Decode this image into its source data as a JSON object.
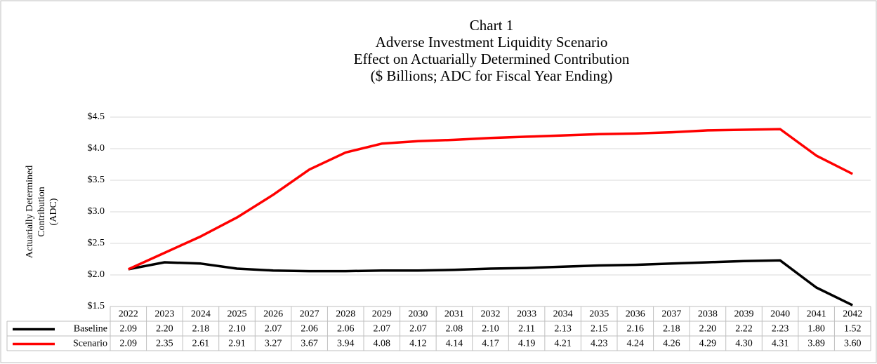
{
  "chart_data": {
    "type": "line",
    "title_lines": [
      "Chart 1",
      "Adverse Investment Liquidity Scenario",
      "Effect on Actuarially Determined Contribution",
      "($ Billions; ADC for Fiscal Year Ending)"
    ],
    "y_label_lines": [
      "Actuarially Determined",
      "Contribution",
      "(ADC)"
    ],
    "categories": [
      "2022",
      "2023",
      "2024",
      "2025",
      "2026",
      "2027",
      "2028",
      "2029",
      "2030",
      "2031",
      "2032",
      "2033",
      "2034",
      "2035",
      "2036",
      "2037",
      "2038",
      "2039",
      "2040",
      "2041",
      "2042"
    ],
    "series": [
      {
        "name": "Baseline",
        "color": "#000000",
        "values": [
          2.09,
          2.2,
          2.18,
          2.1,
          2.07,
          2.06,
          2.06,
          2.07,
          2.07,
          2.08,
          2.1,
          2.11,
          2.13,
          2.15,
          2.16,
          2.18,
          2.2,
          2.22,
          2.23,
          1.8,
          1.52
        ],
        "value_labels": [
          "2.09",
          "2.20",
          "2.18",
          "2.10",
          "2.07",
          "2.06",
          "2.06",
          "2.07",
          "2.07",
          "2.08",
          "2.10",
          "2.11",
          "2.13",
          "2.15",
          "2.16",
          "2.18",
          "2.20",
          "2.22",
          "2.23",
          "1.80",
          "1.52"
        ]
      },
      {
        "name": "Scenario",
        "color": "#ff0000",
        "values": [
          2.09,
          2.35,
          2.61,
          2.91,
          3.27,
          3.67,
          3.94,
          4.08,
          4.12,
          4.14,
          4.17,
          4.19,
          4.21,
          4.23,
          4.24,
          4.26,
          4.29,
          4.3,
          4.31,
          3.89,
          3.6
        ],
        "value_labels": [
          "2.09",
          "2.35",
          "2.61",
          "2.91",
          "3.27",
          "3.67",
          "3.94",
          "4.08",
          "4.12",
          "4.14",
          "4.17",
          "4.19",
          "4.21",
          "4.23",
          "4.24",
          "4.26",
          "4.29",
          "4.30",
          "4.31",
          "3.89",
          "3.60"
        ]
      }
    ],
    "ylim": [
      1.5,
      4.5
    ],
    "yticks": [
      {
        "value": 1.5,
        "label": "$1.5"
      },
      {
        "value": 2.0,
        "label": "$2.0"
      },
      {
        "value": 2.5,
        "label": "$2.5"
      },
      {
        "value": 3.0,
        "label": "$3.0"
      },
      {
        "value": 3.5,
        "label": "$3.5"
      },
      {
        "value": 4.0,
        "label": "$4.0"
      },
      {
        "value": 4.5,
        "label": "$4.5"
      }
    ],
    "grid": true
  }
}
